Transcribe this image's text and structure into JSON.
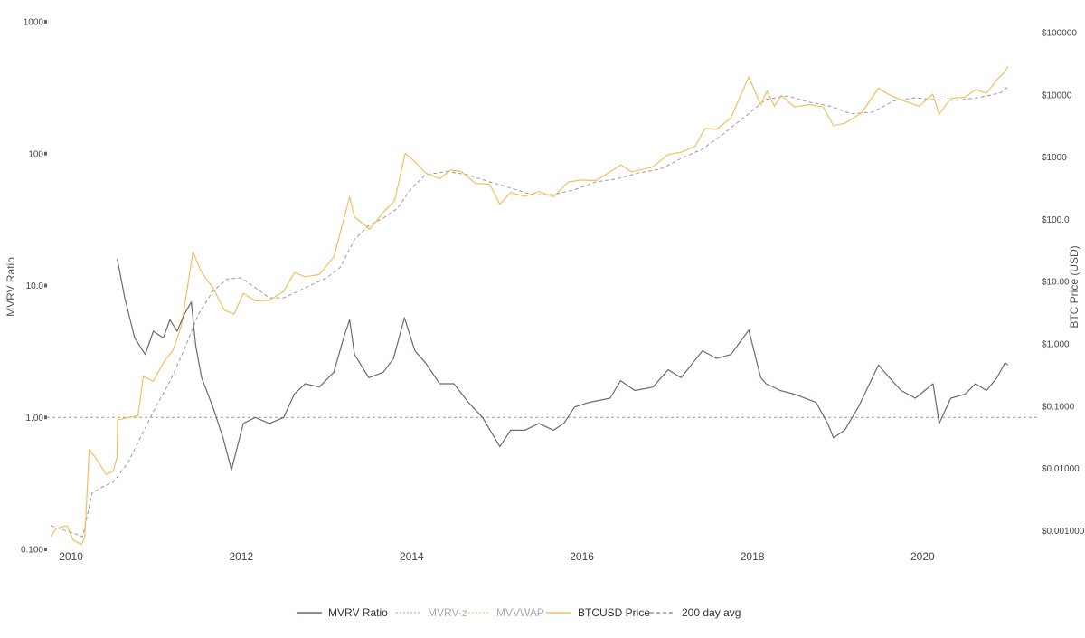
{
  "chart_data": {
    "type": "line",
    "x_range": [
      "2009-09-20",
      "2021-05-10"
    ],
    "x_ticks": [
      "2010",
      "2012",
      "2014",
      "2016",
      "2018",
      "2020"
    ],
    "y_left": {
      "label": "MVRV Ratio",
      "scale": "log",
      "range": [
        0.1,
        1000
      ],
      "ticks": [
        "0.100",
        "1.00",
        "10.0",
        "100",
        "1000"
      ]
    },
    "y_right": {
      "label": "BTC Price (USD)",
      "scale": "log",
      "range": [
        0.0005,
        150000
      ],
      "ticks": [
        "$0.001000",
        "$0.01000",
        "$0.1000",
        "$1.000",
        "$10.00",
        "$100.0",
        "$1000",
        "$10000",
        "$100000"
      ]
    },
    "reference_line": {
      "y": 1.0,
      "axis": "left",
      "style": "dashed"
    },
    "legend": {
      "position": "bottom",
      "items": [
        {
          "label": "MVRV Ratio",
          "color": "#7a6464",
          "dash": "solid",
          "muted": false
        },
        {
          "label": "MVRV-z",
          "color": "#e0b0b0",
          "dash": "dotted",
          "muted": true
        },
        {
          "label": "MVVWAP",
          "color": "#ecd9a8",
          "dash": "dotted",
          "muted": true
        },
        {
          "label": "BTCUSD Price",
          "color": "#f0c060",
          "dash": "solid",
          "muted": false
        },
        {
          "label": "200 day avg",
          "color": "#999999",
          "dash": "dashed",
          "muted": false
        }
      ]
    },
    "series": [
      {
        "name": "MVRV Ratio",
        "axis": "left",
        "color": "#7a6464",
        "points": [
          [
            "2010-07-18",
            16.0
          ],
          [
            "2010-08-20",
            8.0
          ],
          [
            "2010-10-01",
            4.0
          ],
          [
            "2010-11-15",
            3.0
          ],
          [
            "2010-12-20",
            4.5
          ],
          [
            "2011-02-01",
            4.0
          ],
          [
            "2011-03-01",
            5.5
          ],
          [
            "2011-04-01",
            4.5
          ],
          [
            "2011-05-01",
            6.0
          ],
          [
            "2011-06-01",
            7.5
          ],
          [
            "2011-06-20",
            3.5
          ],
          [
            "2011-07-15",
            2.0
          ],
          [
            "2011-09-01",
            1.2
          ],
          [
            "2011-10-15",
            0.7
          ],
          [
            "2011-11-20",
            0.4
          ],
          [
            "2012-01-10",
            0.9
          ],
          [
            "2012-03-01",
            1.0
          ],
          [
            "2012-05-01",
            0.9
          ],
          [
            "2012-07-01",
            1.0
          ],
          [
            "2012-08-15",
            1.5
          ],
          [
            "2012-10-01",
            1.8
          ],
          [
            "2012-12-01",
            1.7
          ],
          [
            "2013-02-01",
            2.2
          ],
          [
            "2013-03-15",
            4.0
          ],
          [
            "2013-04-10",
            5.5
          ],
          [
            "2013-05-01",
            3.0
          ],
          [
            "2013-07-01",
            2.0
          ],
          [
            "2013-09-01",
            2.2
          ],
          [
            "2013-10-15",
            2.8
          ],
          [
            "2013-12-01",
            5.7
          ],
          [
            "2014-01-15",
            3.2
          ],
          [
            "2014-03-01",
            2.6
          ],
          [
            "2014-05-01",
            1.8
          ],
          [
            "2014-07-01",
            1.8
          ],
          [
            "2014-09-01",
            1.3
          ],
          [
            "2014-11-01",
            1.0
          ],
          [
            "2015-01-14",
            0.6
          ],
          [
            "2015-03-01",
            0.8
          ],
          [
            "2015-05-01",
            0.8
          ],
          [
            "2015-07-01",
            0.9
          ],
          [
            "2015-09-01",
            0.8
          ],
          [
            "2015-10-15",
            0.9
          ],
          [
            "2015-12-01",
            1.2
          ],
          [
            "2016-02-01",
            1.3
          ],
          [
            "2016-05-01",
            1.4
          ],
          [
            "2016-06-15",
            1.9
          ],
          [
            "2016-08-15",
            1.6
          ],
          [
            "2016-11-01",
            1.7
          ],
          [
            "2017-01-05",
            2.3
          ],
          [
            "2017-03-01",
            2.0
          ],
          [
            "2017-06-01",
            3.2
          ],
          [
            "2017-08-01",
            2.8
          ],
          [
            "2017-10-01",
            3.0
          ],
          [
            "2017-12-17",
            4.6
          ],
          [
            "2018-02-06",
            2.0
          ],
          [
            "2018-03-01",
            1.8
          ],
          [
            "2018-05-01",
            1.6
          ],
          [
            "2018-07-01",
            1.5
          ],
          [
            "2018-10-01",
            1.3
          ],
          [
            "2018-11-20",
            0.9
          ],
          [
            "2018-12-15",
            0.7
          ],
          [
            "2019-02-01",
            0.8
          ],
          [
            "2019-04-01",
            1.2
          ],
          [
            "2019-06-26",
            2.5
          ],
          [
            "2019-08-01",
            2.1
          ],
          [
            "2019-10-01",
            1.6
          ],
          [
            "2019-12-01",
            1.4
          ],
          [
            "2020-02-15",
            1.8
          ],
          [
            "2020-03-12",
            0.9
          ],
          [
            "2020-05-01",
            1.4
          ],
          [
            "2020-07-01",
            1.5
          ],
          [
            "2020-08-15",
            1.8
          ],
          [
            "2020-10-01",
            1.6
          ],
          [
            "2020-11-15",
            2.0
          ],
          [
            "2020-12-20",
            2.6
          ],
          [
            "2021-01-01",
            2.5
          ]
        ]
      },
      {
        "name": "BTCUSD Price",
        "axis": "right",
        "color": "#f0c060",
        "points": [
          [
            "2009-10-05",
            0.0008
          ],
          [
            "2009-11-01",
            0.0011
          ],
          [
            "2009-12-15",
            0.0012
          ],
          [
            "2010-01-10",
            0.0007
          ],
          [
            "2010-02-15",
            0.0006
          ],
          [
            "2010-03-01",
            0.0008
          ],
          [
            "2010-03-20",
            0.02
          ],
          [
            "2010-04-15",
            0.015
          ],
          [
            "2010-06-01",
            0.008
          ],
          [
            "2010-07-01",
            0.009
          ],
          [
            "2010-07-17",
            0.015
          ],
          [
            "2010-07-20",
            0.06
          ],
          [
            "2010-09-01",
            0.065
          ],
          [
            "2010-10-15",
            0.07
          ],
          [
            "2010-11-07",
            0.3
          ],
          [
            "2010-12-20",
            0.25
          ],
          [
            "2011-02-01",
            0.5
          ],
          [
            "2011-03-15",
            0.8
          ],
          [
            "2011-04-20",
            2.0
          ],
          [
            "2011-06-08",
            30.0
          ],
          [
            "2011-07-15",
            14.0
          ],
          [
            "2011-09-01",
            8.0
          ],
          [
            "2011-10-20",
            3.5
          ],
          [
            "2011-12-01",
            3.0
          ],
          [
            "2012-01-10",
            6.5
          ],
          [
            "2012-03-01",
            4.9
          ],
          [
            "2012-05-01",
            5.0
          ],
          [
            "2012-07-01",
            7.0
          ],
          [
            "2012-08-16",
            14.0
          ],
          [
            "2012-10-01",
            12.0
          ],
          [
            "2012-12-01",
            13.0
          ],
          [
            "2013-02-01",
            25.0
          ],
          [
            "2013-04-10",
            230.0
          ],
          [
            "2013-05-01",
            110.0
          ],
          [
            "2013-07-05",
            70.0
          ],
          [
            "2013-09-01",
            130.0
          ],
          [
            "2013-10-20",
            200.0
          ],
          [
            "2013-12-04",
            1150.0
          ],
          [
            "2014-01-15",
            850.0
          ],
          [
            "2014-03-01",
            560.0
          ],
          [
            "2014-05-01",
            450.0
          ],
          [
            "2014-06-15",
            620.0
          ],
          [
            "2014-08-01",
            590.0
          ],
          [
            "2014-10-01",
            380.0
          ],
          [
            "2014-12-01",
            370.0
          ],
          [
            "2015-01-14",
            175.0
          ],
          [
            "2015-03-01",
            270.0
          ],
          [
            "2015-05-01",
            235.0
          ],
          [
            "2015-07-01",
            280.0
          ],
          [
            "2015-09-01",
            230.0
          ],
          [
            "2015-11-04",
            400.0
          ],
          [
            "2016-01-01",
            430.0
          ],
          [
            "2016-03-01",
            420.0
          ],
          [
            "2016-06-16",
            750.0
          ],
          [
            "2016-08-01",
            580.0
          ],
          [
            "2016-11-01",
            700.0
          ],
          [
            "2017-01-04",
            1100.0
          ],
          [
            "2017-03-01",
            1200.0
          ],
          [
            "2017-05-01",
            1500.0
          ],
          [
            "2017-06-12",
            2900.0
          ],
          [
            "2017-08-01",
            2800.0
          ],
          [
            "2017-10-01",
            4300.0
          ],
          [
            "2017-12-17",
            19500.0
          ],
          [
            "2018-02-06",
            6900.0
          ],
          [
            "2018-03-05",
            11500.0
          ],
          [
            "2018-04-06",
            6600.0
          ],
          [
            "2018-05-05",
            9800.0
          ],
          [
            "2018-07-01",
            6400.0
          ],
          [
            "2018-09-01",
            7000.0
          ],
          [
            "2018-11-01",
            6400.0
          ],
          [
            "2018-12-15",
            3200.0
          ],
          [
            "2019-02-01",
            3500.0
          ],
          [
            "2019-04-15",
            5200.0
          ],
          [
            "2019-06-26",
            12800.0
          ],
          [
            "2019-08-01",
            10500.0
          ],
          [
            "2019-10-01",
            8300.0
          ],
          [
            "2019-12-18",
            6600.0
          ],
          [
            "2020-02-14",
            10300.0
          ],
          [
            "2020-03-12",
            4900.0
          ],
          [
            "2020-05-01",
            8800.0
          ],
          [
            "2020-07-01",
            9200.0
          ],
          [
            "2020-08-17",
            12200.0
          ],
          [
            "2020-10-01",
            10600.0
          ],
          [
            "2020-11-20",
            18500.0
          ],
          [
            "2020-12-20",
            23500.0
          ],
          [
            "2021-01-01",
            29000.0
          ]
        ]
      },
      {
        "name": "200 day avg",
        "axis": "right",
        "color": "#999999",
        "points": [
          [
            "2009-10-05",
            0.0012
          ],
          [
            "2010-01-15",
            0.0009
          ],
          [
            "2010-02-20",
            0.0008
          ],
          [
            "2010-04-01",
            0.004
          ],
          [
            "2010-05-15",
            0.005
          ],
          [
            "2010-07-01",
            0.006
          ],
          [
            "2010-09-01",
            0.012
          ],
          [
            "2010-11-01",
            0.035
          ],
          [
            "2011-01-01",
            0.1
          ],
          [
            "2011-03-01",
            0.25
          ],
          [
            "2011-05-01",
            0.8
          ],
          [
            "2011-07-01",
            3.0
          ],
          [
            "2011-09-01",
            7.0
          ],
          [
            "2011-11-01",
            11.0
          ],
          [
            "2012-01-01",
            11.5
          ],
          [
            "2012-03-01",
            8.0
          ],
          [
            "2012-05-01",
            5.5
          ],
          [
            "2012-07-01",
            5.5
          ],
          [
            "2012-09-01",
            7.0
          ],
          [
            "2012-11-01",
            9.0
          ],
          [
            "2013-01-01",
            11.5
          ],
          [
            "2013-03-01",
            17.0
          ],
          [
            "2013-05-01",
            48.0
          ],
          [
            "2013-07-01",
            80.0
          ],
          [
            "2013-09-01",
            105.0
          ],
          [
            "2013-11-01",
            150.0
          ],
          [
            "2014-01-01",
            320.0
          ],
          [
            "2014-03-01",
            520.0
          ],
          [
            "2014-06-01",
            590.0
          ],
          [
            "2014-09-01",
            520.0
          ],
          [
            "2014-12-01",
            400.0
          ],
          [
            "2015-03-01",
            320.0
          ],
          [
            "2015-06-01",
            250.0
          ],
          [
            "2015-09-01",
            250.0
          ],
          [
            "2015-12-01",
            300.0
          ],
          [
            "2016-03-01",
            400.0
          ],
          [
            "2016-06-01",
            450.0
          ],
          [
            "2016-09-01",
            560.0
          ],
          [
            "2016-12-01",
            640.0
          ],
          [
            "2017-03-01",
            950.0
          ],
          [
            "2017-06-01",
            1350.0
          ],
          [
            "2017-09-01",
            2400.0
          ],
          [
            "2017-12-01",
            4500.0
          ],
          [
            "2018-03-01",
            8500.0
          ],
          [
            "2018-06-01",
            9600.0
          ],
          [
            "2018-09-01",
            7700.0
          ],
          [
            "2018-12-01",
            6600.0
          ],
          [
            "2019-03-01",
            5000.0
          ],
          [
            "2019-06-01",
            5300.0
          ],
          [
            "2019-09-01",
            8100.0
          ],
          [
            "2019-12-01",
            9000.0
          ],
          [
            "2020-03-01",
            8300.0
          ],
          [
            "2020-06-01",
            8200.0
          ],
          [
            "2020-09-01",
            9100.0
          ],
          [
            "2020-12-01",
            10800.0
          ],
          [
            "2021-01-01",
            13500.0
          ]
        ]
      }
    ]
  }
}
